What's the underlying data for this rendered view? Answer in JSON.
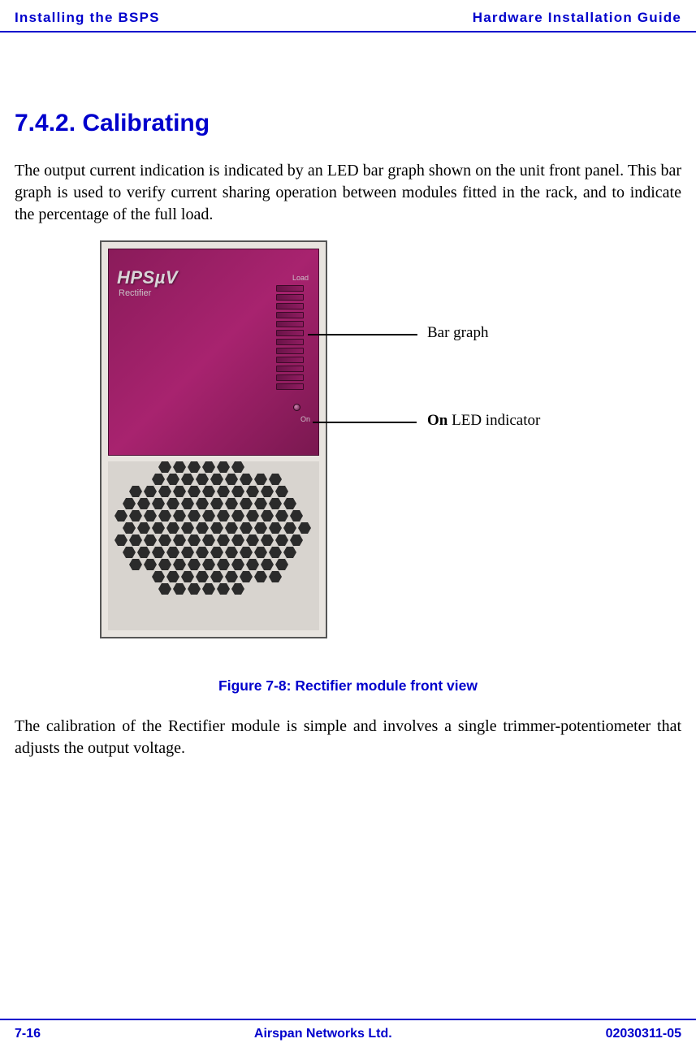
{
  "header": {
    "left": "Installing the BSPS",
    "right": "Hardware Installation Guide"
  },
  "section": {
    "heading": "7.4.2. Calibrating",
    "para1": "The output current indication is indicated by an LED bar graph shown on the unit front panel. This bar graph is used to verify current sharing operation between modules fitted in the rack, and to indicate the percentage of the full load.",
    "para2": "The calibration of the Rectifier module is simple and involves a single trimmer-potentiometer that adjusts the output voltage."
  },
  "figure": {
    "panel_label": "HPSµV",
    "panel_sublabel": "Rectifier",
    "load_text": "Load",
    "on_text": "On",
    "bar_graph_segments": 12,
    "callout1": "Bar graph",
    "callout2_bold": "On",
    "callout2_rest": " LED indicator",
    "caption": "Figure 7-8:  Rectifier module front view",
    "colors": {
      "panel_bg": "#8a1b5a",
      "page_accent": "#0000cc",
      "photo_border": "#555555",
      "grille_hole": "#2b2b2b"
    }
  },
  "footer": {
    "left": "7-16",
    "center": "Airspan Networks Ltd.",
    "right": "02030311-05"
  }
}
